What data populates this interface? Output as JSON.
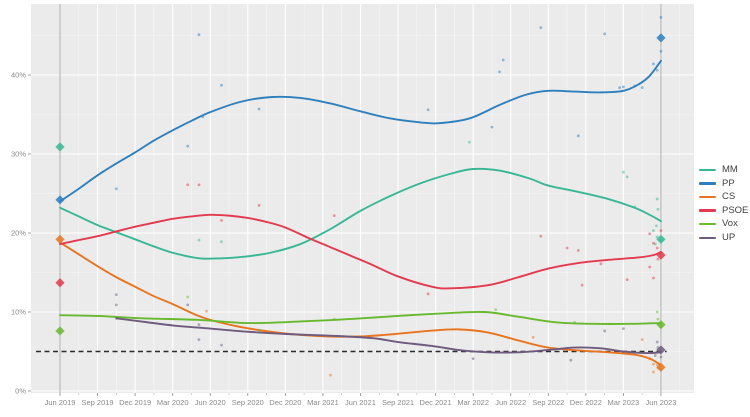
{
  "figure": {
    "background": "#ffffff",
    "panel_background": "#ebebeb",
    "grid_major_color": "#ffffff",
    "grid_minor_color": "rgba(255,255,255,0.55)",
    "axis_text_color": "#8a8a8a",
    "legend_text_color": "#404040",
    "reference_dash_color": "#2b2b2b",
    "election_guide_color": "#a8a8a8"
  },
  "chart_data": {
    "type": "scatter",
    "subtype": "poll-scatter-with-smoothed-trend-lines",
    "title": "",
    "xlabel": "",
    "ylabel": "",
    "x_tick_labels": [
      "Jun 2019",
      "Sep 2019",
      "Dec 2019",
      "Mar 2020",
      "Jun 2020",
      "Sep 2020",
      "Dec 2020",
      "Mar 2021",
      "Jun 2021",
      "Sep 2021",
      "Dec 2021",
      "Mar 2022",
      "Jun 2022",
      "Sep 2022",
      "Dec 2022",
      "Mar 2023",
      "Jun 2023"
    ],
    "y_tick_labels": [
      "0%",
      "10%",
      "20%",
      "30%",
      "40%"
    ],
    "y_tick_values": [
      0,
      10,
      20,
      30,
      40
    ],
    "y_minor_values": [
      5,
      15,
      25,
      35,
      45
    ],
    "ylim": [
      0,
      49
    ],
    "x_range_quarters": [
      0,
      16
    ],
    "grid": true,
    "legend_position": "right",
    "reference_line": {
      "y": 5,
      "style": "dashed",
      "color": "#2b2b2b"
    },
    "vertical_marker_quarters": [
      0,
      16
    ],
    "series": [
      {
        "name": "MM",
        "color": "#38b795",
        "trend": [
          [
            0,
            23.2
          ],
          [
            0.5,
            22.1
          ],
          [
            1,
            21.0
          ],
          [
            1.5,
            20.1
          ],
          [
            2,
            19.2
          ],
          [
            2.5,
            18.3
          ],
          [
            3,
            17.5
          ],
          [
            3.7,
            16.8
          ],
          [
            4.3,
            16.8
          ],
          [
            4.9,
            17.0
          ],
          [
            5.6,
            17.5
          ],
          [
            6.4,
            18.6
          ],
          [
            7.2,
            20.5
          ],
          [
            8,
            22.8
          ],
          [
            8.8,
            24.7
          ],
          [
            9.6,
            26.3
          ],
          [
            10.4,
            27.5
          ],
          [
            11,
            28.1
          ],
          [
            11.7,
            27.9
          ],
          [
            12.5,
            26.9
          ],
          [
            13,
            26.0
          ],
          [
            13.8,
            25.2
          ],
          [
            14.6,
            24.3
          ],
          [
            15.3,
            23.2
          ],
          [
            15.7,
            22.3
          ],
          [
            16,
            21.5
          ]
        ],
        "points": [
          [
            3.7,
            19.1
          ],
          [
            4.3,
            18.9
          ],
          [
            10.9,
            31.5
          ],
          [
            15.0,
            27.7
          ],
          [
            15.1,
            27.1
          ],
          [
            15.3,
            23.3
          ],
          [
            15.9,
            24.3
          ],
          [
            15.92,
            23.0
          ],
          [
            15.88,
            20.9
          ],
          [
            15.8,
            20.3
          ],
          [
            15.9,
            19.5
          ],
          [
            16.0,
            19.0
          ],
          [
            15.85,
            18.6
          ]
        ],
        "elections": [
          [
            0,
            30.9
          ],
          [
            16,
            19.2
          ]
        ]
      },
      {
        "name": "PP",
        "color": "#2e7fbe",
        "trend": [
          [
            0,
            24.0
          ],
          [
            0.5,
            25.6
          ],
          [
            1,
            27.3
          ],
          [
            1.5,
            28.8
          ],
          [
            2,
            30.2
          ],
          [
            2.5,
            31.7
          ],
          [
            3,
            33.0
          ],
          [
            3.5,
            34.2
          ],
          [
            4,
            35.3
          ],
          [
            4.8,
            36.6
          ],
          [
            5.6,
            37.2
          ],
          [
            6.4,
            37.1
          ],
          [
            7.2,
            36.4
          ],
          [
            8,
            35.4
          ],
          [
            8.8,
            34.5
          ],
          [
            9.6,
            34.0
          ],
          [
            10.1,
            33.9
          ],
          [
            10.9,
            34.5
          ],
          [
            11.7,
            36.2
          ],
          [
            12.4,
            37.5
          ],
          [
            13,
            38.0
          ],
          [
            13.7,
            37.9
          ],
          [
            14.4,
            37.8
          ],
          [
            15,
            38.0
          ],
          [
            15.4,
            38.8
          ],
          [
            15.7,
            39.9
          ],
          [
            16,
            41.8
          ]
        ],
        "points": [
          [
            1.5,
            25.6
          ],
          [
            3.4,
            31.0
          ],
          [
            3.7,
            45.1
          ],
          [
            3.8,
            34.7
          ],
          [
            4.3,
            38.7
          ],
          [
            5.3,
            35.7
          ],
          [
            9.8,
            35.6
          ],
          [
            11.5,
            33.4
          ],
          [
            11.7,
            40.4
          ],
          [
            11.8,
            41.9
          ],
          [
            12.8,
            46.0
          ],
          [
            13.8,
            32.3
          ],
          [
            14.5,
            45.2
          ],
          [
            14.9,
            38.4
          ],
          [
            15.0,
            38.5
          ],
          [
            15.3,
            38.6
          ],
          [
            15.5,
            38.4
          ],
          [
            15.8,
            41.4
          ],
          [
            15.9,
            40.6
          ],
          [
            16.0,
            47.3
          ],
          [
            16.0,
            43.0
          ]
        ],
        "elections": [
          [
            0,
            24.2
          ],
          [
            16,
            44.7
          ]
        ]
      },
      {
        "name": "CS",
        "color": "#e8741f",
        "trend": [
          [
            0,
            18.8
          ],
          [
            0.5,
            17.3
          ],
          [
            1,
            15.8
          ],
          [
            1.5,
            14.4
          ],
          [
            2,
            13.2
          ],
          [
            2.5,
            12.0
          ],
          [
            3,
            11.0
          ],
          [
            3.8,
            9.3
          ],
          [
            4.7,
            8.2
          ],
          [
            5.6,
            7.5
          ],
          [
            6.4,
            7.1
          ],
          [
            7.2,
            6.9
          ],
          [
            8,
            6.9
          ],
          [
            8.9,
            7.2
          ],
          [
            9.8,
            7.6
          ],
          [
            10.6,
            7.8
          ],
          [
            11.4,
            7.4
          ],
          [
            12.2,
            6.4
          ],
          [
            13,
            5.5
          ],
          [
            13.9,
            5.1
          ],
          [
            14.6,
            4.9
          ],
          [
            15.3,
            4.6
          ],
          [
            15.7,
            4.1
          ],
          [
            16,
            3.3
          ]
        ],
        "points": [
          [
            3.9,
            10.1
          ],
          [
            7.2,
            2.0
          ],
          [
            12.6,
            6.8
          ],
          [
            15.5,
            6.5
          ],
          [
            15.7,
            4.1
          ],
          [
            15.8,
            3.4
          ],
          [
            15.9,
            3.3
          ],
          [
            15.92,
            2.9
          ],
          [
            15.8,
            2.4
          ],
          [
            16.0,
            2.7
          ]
        ],
        "elections": [
          [
            0,
            19.2
          ],
          [
            16,
            3.0
          ]
        ]
      },
      {
        "name": "PSOE",
        "color": "#e23a4e",
        "trend": [
          [
            0,
            18.6
          ],
          [
            0.5,
            19.1
          ],
          [
            1,
            19.6
          ],
          [
            1.5,
            20.2
          ],
          [
            2,
            20.8
          ],
          [
            2.5,
            21.3
          ],
          [
            3,
            21.8
          ],
          [
            3.5,
            22.1
          ],
          [
            4,
            22.3
          ],
          [
            4.5,
            22.2
          ],
          [
            5,
            21.9
          ],
          [
            5.5,
            21.4
          ],
          [
            6,
            20.7
          ],
          [
            6.6,
            19.4
          ],
          [
            7.2,
            18.2
          ],
          [
            7.7,
            17.2
          ],
          [
            8.3,
            16.0
          ],
          [
            9,
            14.5
          ],
          [
            9.9,
            13.2
          ],
          [
            10.4,
            13.0
          ],
          [
            11.4,
            13.4
          ],
          [
            12.2,
            14.4
          ],
          [
            13,
            15.5
          ],
          [
            13.8,
            16.2
          ],
          [
            14.6,
            16.6
          ],
          [
            15.4,
            16.9
          ],
          [
            15.8,
            17.2
          ],
          [
            16,
            17.6
          ]
        ],
        "points": [
          [
            3.4,
            26.1
          ],
          [
            3.7,
            26.1
          ],
          [
            4.3,
            21.6
          ],
          [
            5.3,
            23.5
          ],
          [
            7.3,
            22.2
          ],
          [
            9.8,
            12.3
          ],
          [
            12.8,
            19.6
          ],
          [
            13.5,
            18.1
          ],
          [
            13.8,
            17.8
          ],
          [
            13.9,
            13.4
          ],
          [
            14.4,
            16.1
          ],
          [
            15.1,
            14.1
          ],
          [
            15.7,
            19.9
          ],
          [
            15.7,
            15.7
          ],
          [
            15.8,
            18.7
          ],
          [
            15.9,
            18.1
          ],
          [
            15.92,
            16.7
          ],
          [
            15.8,
            14.3
          ],
          [
            16.0,
            20.3
          ]
        ],
        "elections": [
          [
            0,
            13.7
          ],
          [
            16,
            17.2
          ]
        ]
      },
      {
        "name": "Vox",
        "color": "#68b92e",
        "trend": [
          [
            0,
            9.6
          ],
          [
            1,
            9.5
          ],
          [
            2.2,
            9.2
          ],
          [
            3.7,
            9.0
          ],
          [
            5,
            8.6
          ],
          [
            6.4,
            8.8
          ],
          [
            7.7,
            9.1
          ],
          [
            9,
            9.5
          ],
          [
            10.1,
            9.8
          ],
          [
            11.3,
            10.0
          ],
          [
            12.2,
            9.4
          ],
          [
            13.2,
            8.7
          ],
          [
            14.2,
            8.5
          ],
          [
            15.2,
            8.5
          ],
          [
            16,
            8.6
          ]
        ],
        "points": [
          [
            1.5,
            9.2
          ],
          [
            3.4,
            11.9
          ],
          [
            5.3,
            7.7
          ],
          [
            7.3,
            9.1
          ],
          [
            11.6,
            10.3
          ],
          [
            13.7,
            8.7
          ],
          [
            15.9,
            10.0
          ],
          [
            15.92,
            9.1
          ],
          [
            16.0,
            8.1
          ]
        ],
        "elections": [
          [
            0,
            7.6
          ],
          [
            16,
            8.4
          ]
        ]
      },
      {
        "name": "UP",
        "color": "#6f5b7d",
        "trend": [
          [
            1.5,
            9.2
          ],
          [
            2,
            8.9
          ],
          [
            3,
            8.3
          ],
          [
            4,
            7.9
          ],
          [
            5,
            7.5
          ],
          [
            6.1,
            7.2
          ],
          [
            7.2,
            7.0
          ],
          [
            8.3,
            6.7
          ],
          [
            9,
            6.2
          ],
          [
            9.9,
            5.7
          ],
          [
            10.6,
            5.2
          ],
          [
            11.4,
            4.9
          ],
          [
            12.2,
            4.9
          ],
          [
            13,
            5.2
          ],
          [
            13.7,
            5.5
          ],
          [
            14.4,
            5.4
          ],
          [
            15,
            5.0
          ],
          [
            15.6,
            4.8
          ],
          [
            16,
            4.9
          ]
        ],
        "points": [
          [
            1.5,
            12.2
          ],
          [
            1.5,
            10.9
          ],
          [
            3.4,
            10.9
          ],
          [
            3.7,
            8.4
          ],
          [
            3.7,
            6.5
          ],
          [
            4.3,
            5.8
          ],
          [
            11.0,
            4.1
          ],
          [
            13.6,
            3.9
          ],
          [
            14.5,
            7.6
          ],
          [
            15.0,
            7.9
          ],
          [
            15.9,
            6.2
          ],
          [
            15.92,
            5.5
          ],
          [
            15.85,
            4.5
          ],
          [
            16.0,
            4.3
          ]
        ],
        "elections": [
          [
            16,
            5.2
          ]
        ]
      }
    ]
  }
}
